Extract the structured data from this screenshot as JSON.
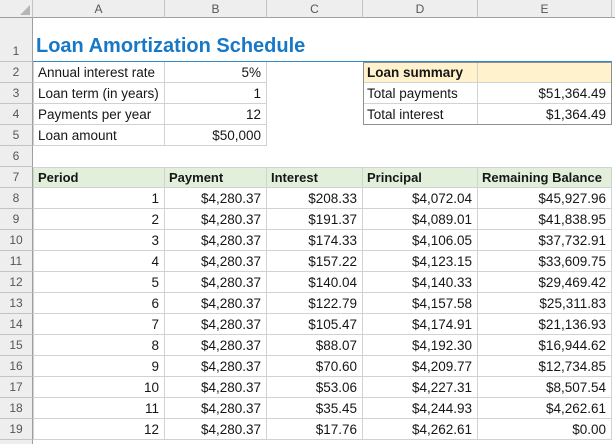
{
  "title": "Loan Amortization Schedule",
  "column_headers": [
    "A",
    "B",
    "C",
    "D",
    "E"
  ],
  "row_numbers": [
    "1",
    "2",
    "3",
    "4",
    "5",
    "6",
    "7",
    "8",
    "9",
    "10",
    "11",
    "12",
    "13",
    "14",
    "15",
    "16",
    "17",
    "18",
    "19"
  ],
  "inputs": {
    "rows": [
      {
        "label": "Annual interest rate",
        "value": "5%"
      },
      {
        "label": "Loan term (in years)",
        "value": "1"
      },
      {
        "label": "Payments per year",
        "value": "12"
      },
      {
        "label": "Loan amount",
        "value": "$50,000"
      }
    ]
  },
  "summary": {
    "title": "Loan summary",
    "rows": [
      {
        "label": "Total payments",
        "value": "$51,364.49"
      },
      {
        "label": "Total interest",
        "value": "$1,364.49"
      }
    ]
  },
  "schedule": {
    "headers": [
      "Period",
      "Payment",
      "Interest",
      "Principal",
      "Remaining Balance"
    ],
    "rows": [
      [
        "1",
        "$4,280.37",
        "$208.33",
        "$4,072.04",
        "$45,927.96"
      ],
      [
        "2",
        "$4,280.37",
        "$191.37",
        "$4,089.01",
        "$41,838.95"
      ],
      [
        "3",
        "$4,280.37",
        "$174.33",
        "$4,106.05",
        "$37,732.91"
      ],
      [
        "4",
        "$4,280.37",
        "$157.22",
        "$4,123.15",
        "$33,609.75"
      ],
      [
        "5",
        "$4,280.37",
        "$140.04",
        "$4,140.33",
        "$29,469.42"
      ],
      [
        "6",
        "$4,280.37",
        "$122.79",
        "$4,157.58",
        "$25,311.83"
      ],
      [
        "7",
        "$4,280.37",
        "$105.47",
        "$4,174.91",
        "$21,136.93"
      ],
      [
        "8",
        "$4,280.37",
        "$88.07",
        "$4,192.30",
        "$16,944.62"
      ],
      [
        "9",
        "$4,280.37",
        "$70.60",
        "$4,209.77",
        "$12,734.85"
      ],
      [
        "10",
        "$4,280.37",
        "$53.06",
        "$4,227.31",
        "$8,507.54"
      ],
      [
        "11",
        "$4,280.37",
        "$35.45",
        "$4,244.93",
        "$4,262.61"
      ],
      [
        "12",
        "$4,280.37",
        "$17.76",
        "$4,262.61",
        "$0.00"
      ]
    ]
  },
  "colors": {
    "title_text": "#1878c8",
    "title_underline": "#2e8bc9",
    "summary_fill": "#fff2cc",
    "schedule_header_fill": "#e2efda",
    "grid_border": "#d2d2d2",
    "summary_outline": "#8f8f8f",
    "heading_bg": "#eeeeee",
    "heading_text": "#565656"
  }
}
